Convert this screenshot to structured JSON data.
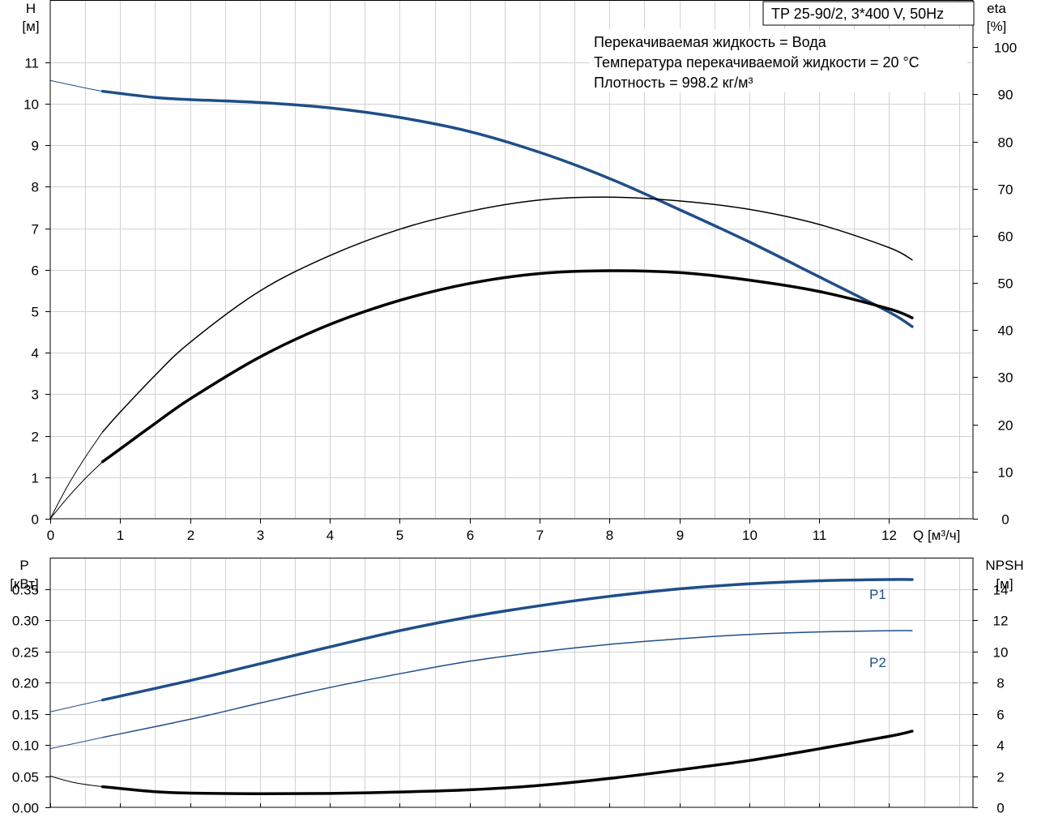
{
  "title_box": "TP 25-90/2, 3*400 V, 50Hz",
  "info_lines": [
    "Перекачиваемая жидкость = Вода",
    "Температура перекачиваемой жидкости = 20 °C",
    "Плотность = 998.2 кг/м³"
  ],
  "colors": {
    "blue": "#1f4e89",
    "black": "#000000",
    "grid": "#d2d2d2"
  },
  "chart_data": [
    {
      "type": "line",
      "name": "head-efficiency",
      "xlabel": "Q [м³/ч]",
      "ylabel_left": [
        "H",
        "[м]"
      ],
      "ylabel_right": [
        "eta",
        "[%]"
      ],
      "xlim": [
        0,
        13.2
      ],
      "ylim_left": [
        0,
        12.5
      ],
      "ylim_right": [
        0,
        110
      ],
      "x_ticks": [
        0,
        1,
        2,
        3,
        4,
        5,
        6,
        7,
        8,
        9,
        10,
        11,
        12
      ],
      "y_ticks_left": [
        0,
        1,
        2,
        3,
        4,
        5,
        6,
        7,
        8,
        9,
        10,
        11
      ],
      "y_ticks_right": [
        0,
        10,
        20,
        30,
        40,
        50,
        60,
        70,
        80,
        90,
        100
      ],
      "grid": true,
      "series": [
        {
          "key": "H",
          "axis": "left",
          "color": "#1f4e89",
          "width": 3.5,
          "x": [
            0.75,
            1.5,
            2,
            3,
            4,
            5,
            6,
            7,
            8,
            9,
            10,
            11,
            12,
            12.33
          ],
          "y": [
            10.3,
            10.15,
            10.1,
            10.03,
            9.9,
            9.67,
            9.33,
            8.83,
            8.2,
            7.45,
            6.67,
            5.83,
            4.98,
            4.63
          ],
          "ext_x": [
            0,
            0.25,
            0.5,
            0.75
          ],
          "ext_y": [
            10.56,
            10.47,
            10.38,
            10.3
          ]
        },
        {
          "key": "eta-total",
          "axis": "right",
          "color": "#000000",
          "width": 3.5,
          "x": [
            0.75,
            1,
            1.5,
            2,
            3,
            4,
            5,
            6,
            7,
            8,
            9,
            10,
            11,
            12,
            12.33
          ],
          "y": [
            12.1,
            14.8,
            20.2,
            25.4,
            34.3,
            41.2,
            46.3,
            49.9,
            52,
            52.6,
            52.2,
            50.6,
            48.2,
            44.5,
            42.6
          ],
          "ext_x": [
            0,
            0.25,
            0.5,
            0.75
          ],
          "ext_y": [
            0,
            4.5,
            8.5,
            12.1
          ]
        },
        {
          "key": "eta-hydraulic",
          "axis": "right",
          "color": "#000000",
          "width": 1.5,
          "x": [
            0.75,
            1,
            1.5,
            2,
            3,
            4,
            5,
            6,
            7,
            8,
            9,
            10,
            11,
            12,
            12.33
          ],
          "y": [
            18.4,
            22.6,
            30.4,
            37.4,
            48.3,
            55.8,
            61.4,
            65.2,
            67.6,
            68.2,
            67.4,
            65.6,
            62.4,
            57.5,
            54.9
          ],
          "ext_x": [
            0,
            0.25,
            0.5,
            0.75
          ],
          "ext_y": [
            0,
            7,
            13,
            18.4
          ]
        }
      ]
    },
    {
      "type": "line",
      "name": "power-npsh",
      "ylabel_left": [
        "P",
        "[кВт]"
      ],
      "ylabel_right": [
        "NPSH",
        "[м]"
      ],
      "xlim": [
        0,
        13.2
      ],
      "ylim_left": [
        0,
        0.4
      ],
      "ylim_right": [
        0,
        16
      ],
      "y_ticks_left": [
        "0.00",
        "0.05",
        "0.10",
        "0.15",
        "0.20",
        "0.25",
        "0.30",
        "0.35"
      ],
      "y_ticks_right": [
        0,
        2,
        4,
        6,
        8,
        10,
        12,
        14
      ],
      "grid": true,
      "series": [
        {
          "key": "P1",
          "name": "P1",
          "axis": "left",
          "color": "#1f4e89",
          "width": 3.5,
          "x": [
            0.75,
            2,
            3,
            4,
            5,
            6,
            7,
            8,
            9,
            10,
            11,
            12,
            12.33
          ],
          "y": [
            0.172,
            0.203,
            0.23,
            0.257,
            0.283,
            0.305,
            0.323,
            0.338,
            0.35,
            0.358,
            0.363,
            0.365,
            0.365
          ],
          "ext_x": [
            0,
            0.75
          ],
          "ext_y": [
            0.153,
            0.172
          ]
        },
        {
          "key": "P2",
          "name": "P2",
          "axis": "left",
          "color": "#1f4e89",
          "width": 1.5,
          "x": [
            0.75,
            2,
            3,
            4,
            5,
            6,
            7,
            8,
            9,
            10,
            11,
            12,
            12.33
          ],
          "y": [
            0.112,
            0.141,
            0.167,
            0.192,
            0.214,
            0.234,
            0.249,
            0.261,
            0.27,
            0.277,
            0.281,
            0.283,
            0.283
          ],
          "ext_x": [
            0,
            0.75
          ],
          "ext_y": [
            0.094,
            0.112
          ]
        },
        {
          "key": "NPSH",
          "axis": "right",
          "color": "#000000",
          "width": 3.5,
          "x": [
            0.75,
            1.5,
            2,
            3,
            4,
            5,
            6,
            7,
            8,
            9,
            10,
            11,
            12,
            12.33
          ],
          "y": [
            1.32,
            1.0,
            0.91,
            0.87,
            0.89,
            0.98,
            1.12,
            1.4,
            1.85,
            2.4,
            3.0,
            3.75,
            4.55,
            4.88
          ],
          "ext_x": [
            0,
            0.35,
            0.75
          ],
          "ext_y": [
            2.0,
            1.58,
            1.32
          ]
        }
      ]
    }
  ]
}
